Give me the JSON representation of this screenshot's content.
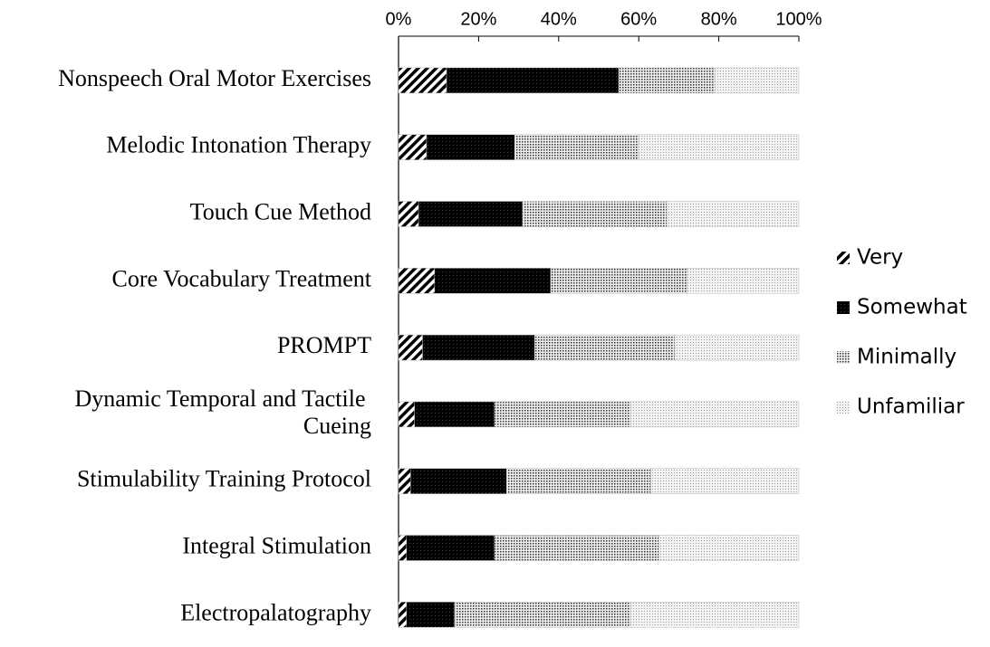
{
  "chart_data": {
    "type": "stacked_barh",
    "categories": [
      "Nonspeech Oral Motor Exercises",
      "Melodic Intonation Therapy",
      "Touch Cue Method",
      "Core Vocabulary Treatment",
      "PROMPT",
      "Dynamic Temporal and Tactile Cueing",
      "Stimulability Training Protocol",
      "Integral Stimulation",
      "Electropalatography"
    ],
    "series": [
      {
        "name": "Very",
        "color": "#000000",
        "values": [
          12,
          7,
          5,
          9,
          6,
          4,
          3,
          2,
          2
        ]
      },
      {
        "name": "Somewhat",
        "color": "#000000",
        "values": [
          43,
          22,
          26,
          29,
          28,
          20,
          24,
          22,
          12
        ]
      },
      {
        "name": "Minimally",
        "color": "#555555",
        "values": [
          24,
          31,
          36,
          34,
          35,
          34,
          36,
          41,
          44
        ]
      },
      {
        "name": "Unfamiliar",
        "color": "#aaaaaa",
        "values": [
          21,
          40,
          33,
          28,
          31,
          42,
          37,
          35,
          42
        ]
      }
    ],
    "xlim": [
      0,
      100
    ],
    "xticks": [
      {
        "value": 0,
        "label": "0%"
      },
      {
        "value": 20,
        "label": "20%"
      },
      {
        "value": 40,
        "label": "40%"
      },
      {
        "value": 60,
        "label": "60%"
      },
      {
        "value": 80,
        "label": "80%"
      },
      {
        "value": 100,
        "label": "100%"
      }
    ],
    "legend": "right"
  }
}
